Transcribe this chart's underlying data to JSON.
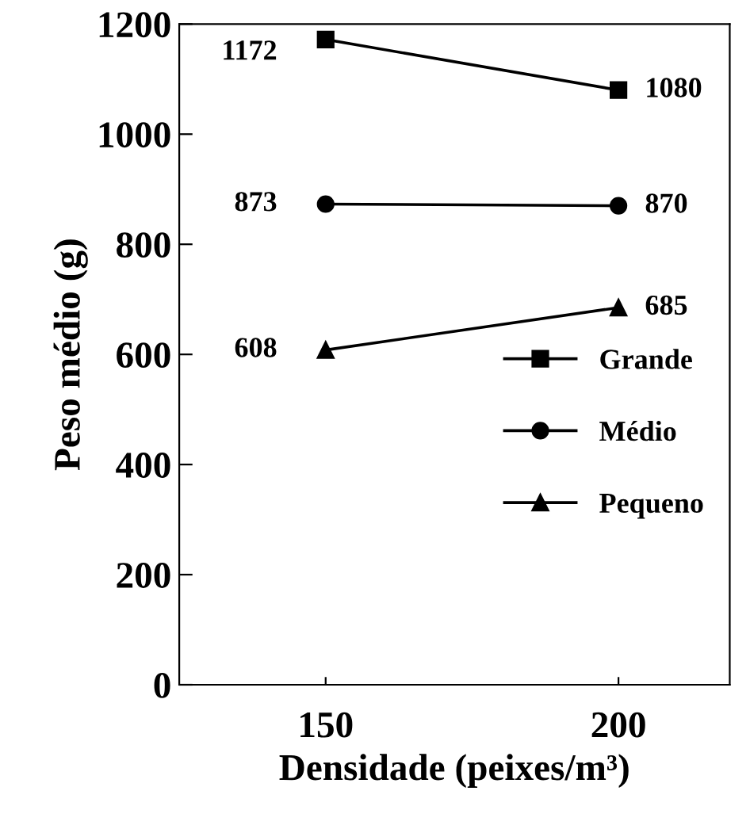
{
  "chart_data": {
    "type": "line",
    "xlabel": "Densidade (peixes/m³)",
    "ylabel": "Peso médio (g)",
    "x": [
      150,
      200
    ],
    "xlim": [
      125,
      219
    ],
    "xticks": [
      150,
      200
    ],
    "series": [
      {
        "name": "Grande",
        "color": "#000000",
        "marker": "square",
        "values": [
          1172,
          1080
        ]
      },
      {
        "name": "Médio",
        "color": "#000000",
        "marker": "circle",
        "values": [
          873,
          870
        ]
      },
      {
        "name": "Pequeno",
        "color": "#000000",
        "marker": "triangle",
        "values": [
          608,
          685
        ]
      }
    ],
    "ylim": [
      0,
      1200
    ],
    "yticks": [
      0,
      200,
      400,
      600,
      800,
      1000,
      1200
    ],
    "data_labels": true,
    "legend": "center right",
    "grid": false,
    "line_style": "solid"
  }
}
